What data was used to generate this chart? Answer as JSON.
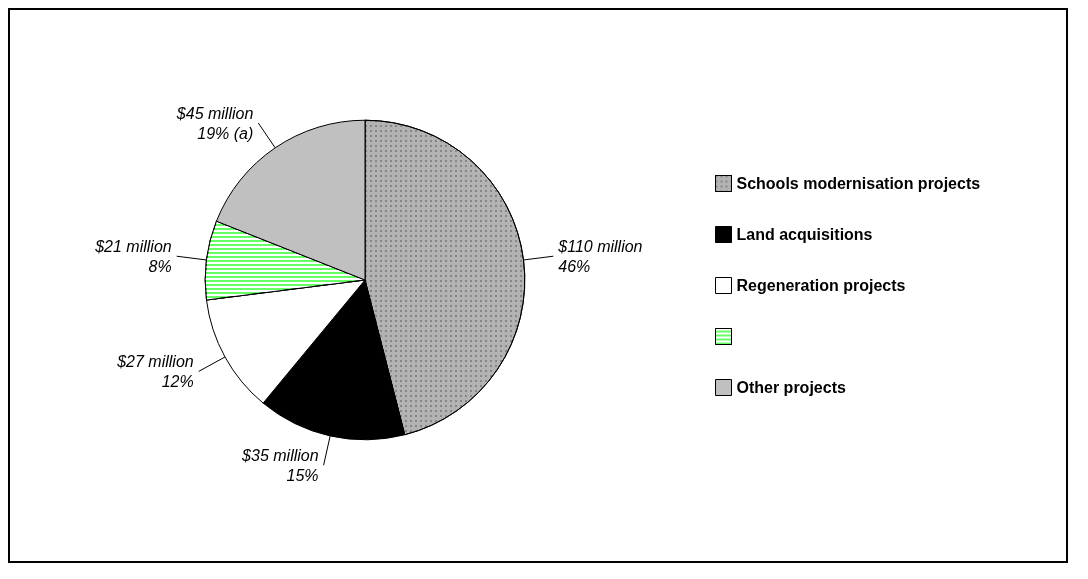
{
  "chart_data": {
    "type": "pie",
    "categories": [
      "Schools modernisation projects",
      "Land acquisitions",
      "Regeneration projects",
      null,
      "Other projects"
    ],
    "values": [
      46,
      15,
      12,
      8,
      19
    ],
    "value_labels": [
      "$110 million\n46%",
      "$35 million\n15%",
      "$27 million\n12%",
      "$21 million\n8%",
      "$45 million\n19% (a)"
    ],
    "colors": [
      "#b3b3b3",
      "#000000",
      "#ffffff",
      "#66ff66",
      "#c0c0c0"
    ],
    "legend": "right"
  }
}
